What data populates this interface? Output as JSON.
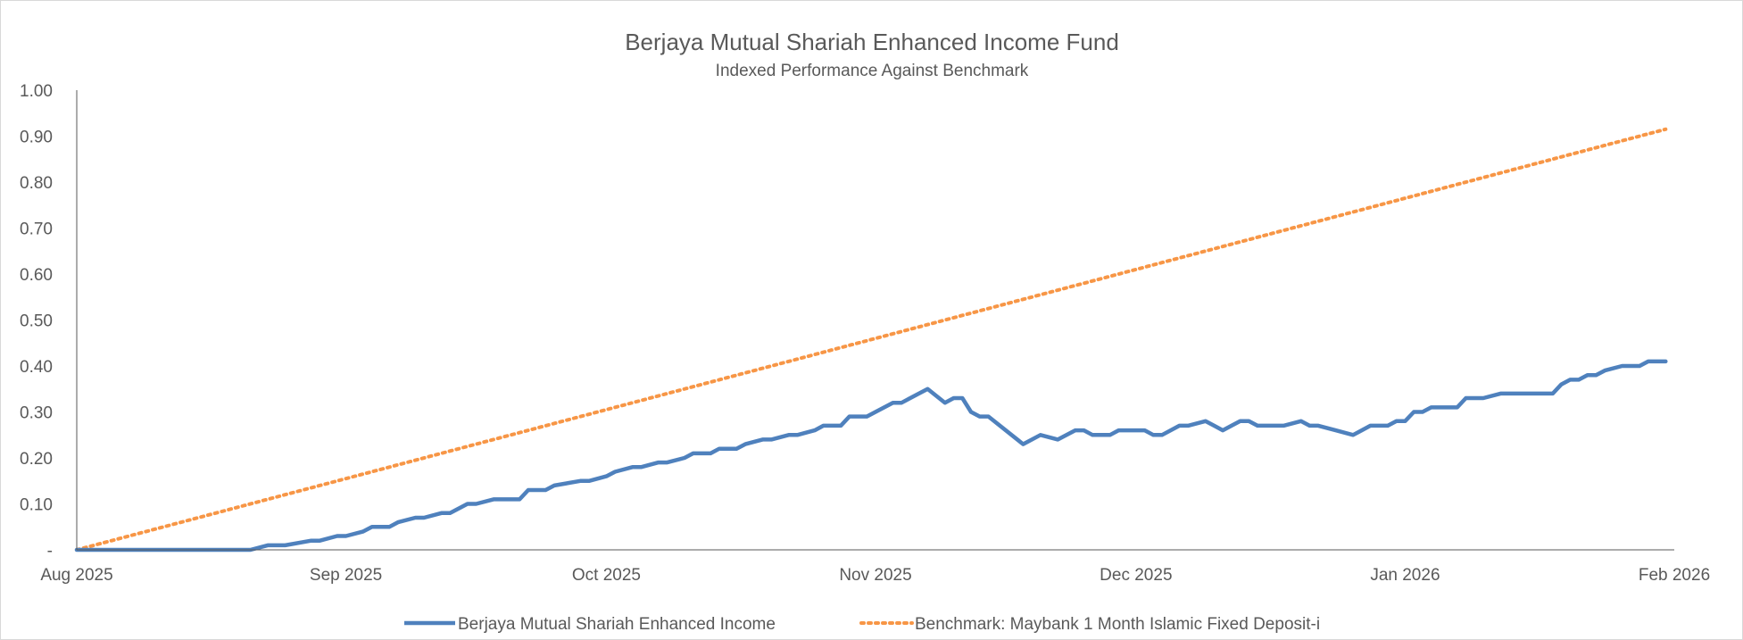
{
  "chart_data": {
    "type": "line",
    "title": "Berjaya Mutual Shariah Enhanced Income Fund",
    "subtitle": "Indexed Performance Against Benchmark",
    "xlabel": "",
    "ylabel": "",
    "ylim": [
      0,
      1.0
    ],
    "yticks": [
      0,
      0.1,
      0.2,
      0.3,
      0.4,
      0.5,
      0.6,
      0.7,
      0.8,
      0.9,
      1.0
    ],
    "ytick_labels": [
      "-",
      "0.10",
      "0.20",
      "0.30",
      "0.40",
      "0.50",
      "0.60",
      "0.70",
      "0.80",
      "0.90",
      "1.00"
    ],
    "xlim": [
      0,
      184
    ],
    "xticks": [
      0,
      31,
      61,
      92,
      122,
      153,
      184
    ],
    "xtick_labels": [
      "Aug 2025",
      "Sep 2025",
      "Oct 2025",
      "Nov 2025",
      "Dec 2025",
      "Jan 2026",
      "Feb 2026"
    ],
    "legend_position": "bottom",
    "grid": false,
    "series": [
      {
        "name": "Berjaya Mutual Shariah Enhanced Income",
        "color": "#4f81bd",
        "style": "solid",
        "x": [
          0,
          10,
          20,
          22,
          23,
          24,
          27,
          28,
          30,
          31,
          33,
          34,
          36,
          37,
          39,
          40,
          42,
          43,
          45,
          46,
          48,
          49,
          51,
          52,
          54,
          55,
          58,
          59,
          61,
          62,
          64,
          65,
          67,
          68,
          70,
          71,
          73,
          74,
          76,
          77,
          79,
          80,
          82,
          83,
          85,
          86,
          88,
          89,
          91,
          92,
          94,
          95,
          96,
          97,
          98,
          100,
          101,
          102,
          103,
          104,
          105,
          109,
          111,
          113,
          115,
          116,
          117,
          118,
          119,
          120,
          122,
          123,
          124,
          125,
          127,
          128,
          130,
          131,
          132,
          133,
          134,
          135,
          136,
          137,
          138,
          139,
          141,
          142,
          143,
          145,
          147,
          148,
          149,
          150,
          151,
          152,
          153,
          154,
          155,
          156,
          158,
          159,
          160,
          161,
          162,
          164,
          165,
          166,
          167,
          170,
          171,
          172,
          173,
          174,
          175,
          176,
          178,
          179,
          180,
          181,
          182,
          183
        ],
        "values": [
          0,
          0,
          0,
          0.01,
          0.01,
          0.01,
          0.02,
          0.02,
          0.03,
          0.03,
          0.04,
          0.05,
          0.05,
          0.06,
          0.07,
          0.07,
          0.08,
          0.08,
          0.1,
          0.1,
          0.11,
          0.11,
          0.11,
          0.13,
          0.13,
          0.14,
          0.15,
          0.15,
          0.16,
          0.17,
          0.18,
          0.18,
          0.19,
          0.19,
          0.2,
          0.21,
          0.21,
          0.22,
          0.22,
          0.23,
          0.24,
          0.24,
          0.25,
          0.25,
          0.26,
          0.27,
          0.27,
          0.29,
          0.29,
          0.3,
          0.32,
          0.32,
          0.33,
          0.34,
          0.35,
          0.32,
          0.33,
          0.33,
          0.3,
          0.29,
          0.29,
          0.23,
          0.25,
          0.24,
          0.26,
          0.26,
          0.25,
          0.25,
          0.25,
          0.26,
          0.26,
          0.26,
          0.25,
          0.25,
          0.27,
          0.27,
          0.28,
          0.27,
          0.26,
          0.27,
          0.28,
          0.28,
          0.27,
          0.27,
          0.27,
          0.27,
          0.28,
          0.27,
          0.27,
          0.26,
          0.25,
          0.26,
          0.27,
          0.27,
          0.27,
          0.28,
          0.28,
          0.3,
          0.3,
          0.31,
          0.31,
          0.31,
          0.33,
          0.33,
          0.33,
          0.34,
          0.34,
          0.34,
          0.34,
          0.34,
          0.36,
          0.37,
          0.37,
          0.38,
          0.38,
          0.39,
          0.4,
          0.4,
          0.4,
          0.41,
          0.41,
          0.41
        ]
      },
      {
        "name": "Benchmark: Maybank 1 Month Islamic Fixed Deposit-i",
        "color": "#f79646",
        "style": "dotted",
        "x": [
          0,
          183
        ],
        "values": [
          0,
          0.915
        ]
      }
    ]
  }
}
